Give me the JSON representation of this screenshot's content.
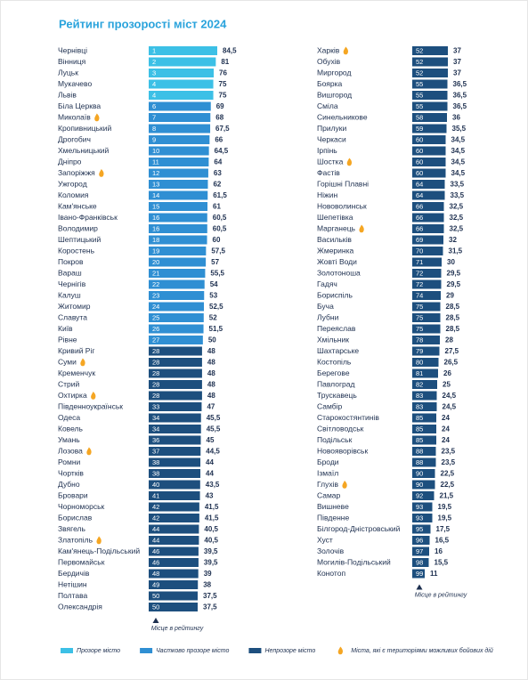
{
  "title": "Рейтинг прозорості міст 2024",
  "chart_data": [
    {
      "type": "bar",
      "orientation": "horizontal",
      "categories": [
        "Чернівці",
        "Вінниця",
        "Луцьк",
        "Мукачево",
        "Львів",
        "Біла Церква",
        "Миколаїв",
        "Кропивницький",
        "Дрогобич",
        "Хмельницький",
        "Дніпро",
        "Запоріжжя",
        "Ужгород",
        "Коломия",
        "Кам'янське",
        "Івано-Франківськ",
        "Володимир",
        "Шептицький",
        "Коростень",
        "Покров",
        "Вараш",
        "Чернігів",
        "Калуш",
        "Житомир",
        "Славута",
        "Київ",
        "Рівне",
        "Кривий Ріг",
        "Суми",
        "Кременчук",
        "Стрий",
        "Охтирка",
        "Південноукраїнськ",
        "Одеса",
        "Ковель",
        "Умань",
        "Лозова",
        "Ромни",
        "Чортків",
        "Дубно",
        "Бровари",
        "Чорноморськ",
        "Борислав",
        "Звягель",
        "Златопіль",
        "Кам'янець-Подільський",
        "Первомайськ",
        "Бердичів",
        "Нетішин",
        "Полтава",
        "Олександрія"
      ],
      "ranks": [
        1,
        2,
        3,
        4,
        4,
        6,
        7,
        8,
        9,
        10,
        11,
        12,
        13,
        14,
        15,
        16,
        16,
        18,
        19,
        20,
        21,
        22,
        23,
        24,
        25,
        26,
        27,
        28,
        28,
        28,
        28,
        28,
        33,
        34,
        34,
        36,
        37,
        38,
        38,
        40,
        41,
        42,
        42,
        44,
        44,
        46,
        46,
        48,
        49,
        50,
        50
      ],
      "values": [
        84.5,
        81,
        76,
        75,
        75,
        69,
        68,
        67.5,
        66,
        64.5,
        64,
        63,
        62,
        61.5,
        61,
        60.5,
        60.5,
        60,
        57.5,
        57,
        55.5,
        54,
        53,
        52.5,
        52,
        51.5,
        50,
        48,
        48,
        48,
        48,
        48,
        47,
        45.5,
        45.5,
        45,
        44.5,
        44,
        44,
        43.5,
        43,
        41.5,
        41.5,
        40.5,
        40.5,
        39.5,
        39.5,
        39,
        38,
        37.5,
        37.5
      ],
      "value_labels": [
        "84,5",
        "81",
        "76",
        "75",
        "75",
        "69",
        "68",
        "67,5",
        "66",
        "64,5",
        "64",
        "63",
        "62",
        "61,5",
        "61",
        "60,5",
        "60,5",
        "60",
        "57,5",
        "57",
        "55,5",
        "54",
        "53",
        "52,5",
        "52",
        "51,5",
        "50",
        "48",
        "48",
        "48",
        "48",
        "48",
        "47",
        "45,5",
        "45,5",
        "45",
        "44,5",
        "44",
        "44",
        "43,5",
        "43",
        "41,5",
        "41,5",
        "40,5",
        "40,5",
        "39,5",
        "39,5",
        "39",
        "38",
        "37,5",
        "37,5"
      ],
      "colors": [
        "#3cc0e6",
        "#3cc0e6",
        "#3cc0e6",
        "#3cc0e6",
        "#3cc0e6",
        "#2f8fd3",
        "#2f8fd3",
        "#2f8fd3",
        "#2f8fd3",
        "#2f8fd3",
        "#2f8fd3",
        "#2f8fd3",
        "#2f8fd3",
        "#2f8fd3",
        "#2f8fd3",
        "#2f8fd3",
        "#2f8fd3",
        "#2f8fd3",
        "#2f8fd3",
        "#2f8fd3",
        "#2f8fd3",
        "#2f8fd3",
        "#2f8fd3",
        "#2f8fd3",
        "#2f8fd3",
        "#2f8fd3",
        "#2f8fd3",
        "#1d4f7e",
        "#1d4f7e",
        "#1d4f7e",
        "#1d4f7e",
        "#1d4f7e",
        "#1d4f7e",
        "#1d4f7e",
        "#1d4f7e",
        "#1d4f7e",
        "#1d4f7e",
        "#1d4f7e",
        "#1d4f7e",
        "#1d4f7e",
        "#1d4f7e",
        "#1d4f7e",
        "#1d4f7e",
        "#1d4f7e",
        "#1d4f7e",
        "#1d4f7e",
        "#1d4f7e",
        "#1d4f7e",
        "#1d4f7e",
        "#1d4f7e",
        "#1d4f7e"
      ],
      "combat": [
        false,
        false,
        false,
        false,
        false,
        false,
        true,
        false,
        false,
        false,
        false,
        true,
        false,
        false,
        false,
        false,
        false,
        false,
        false,
        false,
        false,
        false,
        false,
        false,
        false,
        false,
        false,
        false,
        true,
        false,
        false,
        true,
        false,
        false,
        false,
        false,
        true,
        false,
        false,
        false,
        false,
        false,
        false,
        false,
        true,
        false,
        false,
        false,
        false,
        false,
        false
      ],
      "xlim": [
        -80,
        84.5
      ],
      "axis_label": "Місце в рейтингу"
    },
    {
      "type": "bar",
      "orientation": "horizontal",
      "categories": [
        "Харків",
        "Обухів",
        "Миргород",
        "Боярка",
        "Вишгород",
        "Сміла",
        "Синельникове",
        "Прилуки",
        "Черкаси",
        "Ірпінь",
        "Шостка",
        "Фастів",
        "Горішні Плавні",
        "Ніжин",
        "Нововолинськ",
        "Шепетівка",
        "Марганець",
        "Васильків",
        "Жмеринка",
        "Жовті Води",
        "Золотоноша",
        "Гадяч",
        "Бориспіль",
        "Буча",
        "Лубни",
        "Переяслав",
        "Хмільник",
        "Шахтарське",
        "Костопіль",
        "Берегове",
        "Павлоград",
        "Трускавець",
        "Самбір",
        "Старокостянтинів",
        "Світловодськ",
        "Подільськ",
        "Новояворівськ",
        "Броди",
        "Ізмаїл",
        "Глухів",
        "Самар",
        "Вишневе",
        "Південне",
        "Білгород-Дністровський",
        "Хуст",
        "Золочів",
        "Могилів-Подільський",
        "Конотоп"
      ],
      "ranks": [
        52,
        52,
        52,
        55,
        55,
        55,
        58,
        59,
        60,
        60,
        60,
        60,
        64,
        64,
        66,
        66,
        66,
        69,
        70,
        71,
        72,
        72,
        74,
        75,
        75,
        75,
        78,
        79,
        80,
        81,
        82,
        83,
        83,
        85,
        85,
        85,
        88,
        88,
        90,
        90,
        92,
        93,
        93,
        95,
        96,
        97,
        98,
        99
      ],
      "values": [
        37,
        37,
        37,
        36.5,
        36.5,
        36.5,
        36,
        35.5,
        34.5,
        34.5,
        34.5,
        34.5,
        33.5,
        33.5,
        32.5,
        32.5,
        32.5,
        32,
        31.5,
        30,
        29.5,
        29.5,
        29,
        28.5,
        28.5,
        28.5,
        28,
        27.5,
        26.5,
        26,
        25,
        24.5,
        24.5,
        24,
        24,
        24,
        23.5,
        23.5,
        22.5,
        22.5,
        21.5,
        19.5,
        19.5,
        17.5,
        16.5,
        16,
        15.5,
        11
      ],
      "value_labels": [
        "37",
        "37",
        "37",
        "36,5",
        "36,5",
        "36,5",
        "36",
        "35,5",
        "34,5",
        "34,5",
        "34,5",
        "34,5",
        "33,5",
        "33,5",
        "32,5",
        "32,5",
        "32,5",
        "32",
        "31,5",
        "30",
        "29,5",
        "29,5",
        "29",
        "28,5",
        "28,5",
        "28,5",
        "28",
        "27,5",
        "26,5",
        "26",
        "25",
        "24,5",
        "24,5",
        "24",
        "24",
        "24",
        "23,5",
        "23,5",
        "22,5",
        "22,5",
        "21,5",
        "19,5",
        "19,5",
        "17,5",
        "16,5",
        "16",
        "15,5",
        "11"
      ],
      "color": "#1d4f7e",
      "combat": [
        true,
        false,
        false,
        false,
        false,
        false,
        false,
        false,
        false,
        false,
        true,
        false,
        false,
        false,
        false,
        false,
        true,
        false,
        false,
        false,
        false,
        false,
        false,
        false,
        false,
        false,
        false,
        false,
        false,
        false,
        false,
        false,
        false,
        false,
        false,
        false,
        false,
        false,
        false,
        true,
        false,
        false,
        false,
        false,
        false,
        false,
        false,
        false
      ],
      "xlim": [
        -3,
        37
      ],
      "axis_label": "Місце в рейтингу"
    }
  ],
  "legend": [
    {
      "label": "Прозоре місто",
      "color": "#3cc0e6"
    },
    {
      "label": "Частково прозоре місто",
      "color": "#2f8fd3"
    },
    {
      "label": "Непрозоре місто",
      "color": "#1d4f7e"
    },
    {
      "label": "Міста, які є територіями можливих бойових дій"
    }
  ]
}
